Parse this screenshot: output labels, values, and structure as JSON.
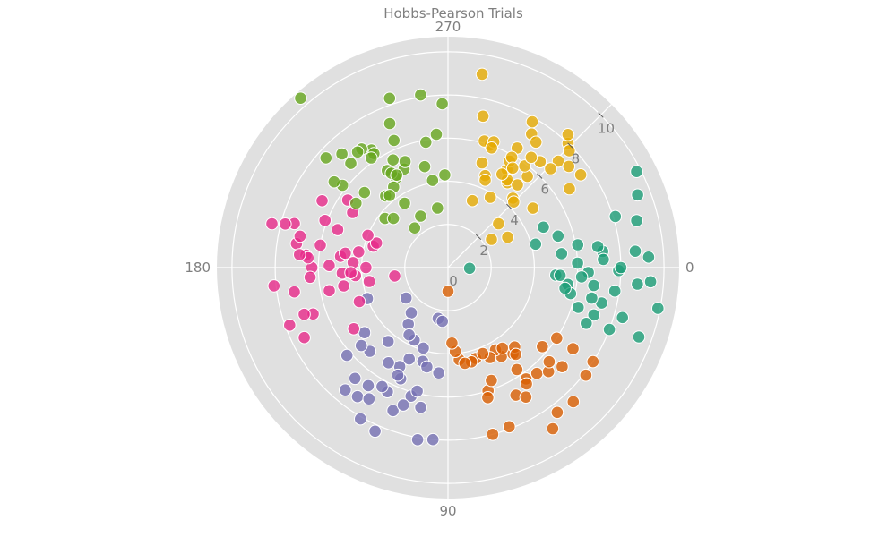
{
  "chart_data": {
    "type": "scatter",
    "subtype": "polar",
    "title": "Hobbs-Pearson Trials",
    "angular_axis": {
      "unit": "degrees",
      "direction": "clockwise",
      "rotation": 0,
      "range": [
        0,
        360
      ],
      "tick_values": [
        0,
        90,
        180,
        270
      ],
      "tick_labels": [
        "0",
        "90",
        "180",
        "270"
      ]
    },
    "radial_axis": {
      "range": [
        0,
        10.7
      ],
      "tick_values": [
        0,
        2,
        4,
        6,
        8,
        10
      ],
      "tick_labels": [
        "0",
        "2",
        "4",
        "6",
        "8",
        "10"
      ],
      "label_angle": 315
    },
    "background_color": "#e0e0e0",
    "grid_color": "#ffffff",
    "grid": true,
    "legend": "none",
    "series": [
      {
        "color": "#1b9e77",
        "points": [
          [
            5.0,
            4
          ],
          [
            9.3,
            357
          ],
          [
            8.7,
            355
          ],
          [
            7.2,
            354
          ],
          [
            7.8,
            8
          ],
          [
            9.4,
            339
          ],
          [
            9.9,
            11
          ],
          [
            8.4,
            16
          ],
          [
            4.2,
            345
          ],
          [
            9.0,
            346
          ],
          [
            8.1,
            343
          ],
          [
            7.0,
            352
          ],
          [
            6.1,
            350
          ],
          [
            5.3,
            353
          ],
          [
            6.8,
            7
          ],
          [
            7.9,
            1
          ],
          [
            6.5,
            2
          ],
          [
            5.6,
            8
          ],
          [
            8.0,
            21
          ],
          [
            7.3,
            13
          ],
          [
            9.4,
            4
          ],
          [
            8.0,
            0
          ],
          [
            6.2,
            4
          ],
          [
            7.1,
            18
          ],
          [
            5.3,
            344
          ],
          [
            9.8,
            333
          ],
          [
            5.8,
            12
          ],
          [
            6.3,
            17
          ],
          [
            6.9,
            22
          ],
          [
            9.4,
            20
          ],
          [
            8.8,
            5
          ],
          [
            4.8,
            337
          ],
          [
            6.0,
            358
          ],
          [
            5.5,
            10
          ],
          [
            5.2,
            4
          ],
          [
            1.0,
            2
          ],
          [
            6.8,
            12
          ],
          [
            7.2,
            357
          ]
        ]
      },
      {
        "color": "#d95f02",
        "points": [
          [
            5.7,
            40
          ],
          [
            4.8,
            59
          ],
          [
            6.9,
            33
          ],
          [
            4.4,
            73
          ],
          [
            4.3,
            83
          ],
          [
            6.0,
            72
          ],
          [
            6.4,
            50
          ],
          [
            7.0,
            41
          ],
          [
            8.5,
            47
          ],
          [
            8.9,
            57
          ],
          [
            4.5,
            76
          ],
          [
            5.7,
            56
          ],
          [
            4.4,
            60
          ],
          [
            8.0,
            33
          ],
          [
            3.9,
            85
          ],
          [
            4.6,
            65
          ],
          [
            7.9,
            69
          ],
          [
            6.7,
            46
          ],
          [
            6.3,
            55
          ],
          [
            1.1,
            90
          ],
          [
            5.0,
            53
          ],
          [
            3.5,
            87
          ],
          [
            4.5,
            56
          ],
          [
            8.1,
            38
          ],
          [
            6.7,
            62
          ],
          [
            6.0,
            33
          ],
          [
            4.8,
            50
          ],
          [
            5.6,
            69
          ],
          [
            8.4,
            53
          ],
          [
            6.4,
            43
          ],
          [
            6.3,
            73
          ],
          [
            5.1,
            52
          ],
          [
            4.5,
            80
          ],
          [
            7.0,
            59
          ],
          [
            4.3,
            68
          ],
          [
            6.5,
            56
          ],
          [
            8.0,
            75
          ]
        ]
      },
      {
        "color": "#7570b3",
        "points": [
          [
            2.7,
            129
          ],
          [
            2.4,
            101
          ],
          [
            3.2,
            125
          ],
          [
            2.4,
            144
          ],
          [
            4.0,
            159
          ],
          [
            6.4,
            116
          ],
          [
            5.6,
            113
          ],
          [
            6.3,
            119
          ],
          [
            8.1,
            100
          ],
          [
            4.5,
            105
          ],
          [
            6.7,
            130
          ],
          [
            6.2,
            139
          ],
          [
            6.6,
            124
          ],
          [
            5.3,
            133
          ],
          [
            8.0,
            95
          ],
          [
            4.9,
            142
          ],
          [
            7.3,
            125
          ],
          [
            4.4,
            129
          ],
          [
            5.1,
            116
          ],
          [
            6.2,
            106
          ],
          [
            7.1,
            111
          ],
          [
            8.3,
            114
          ],
          [
            4.6,
            113
          ],
          [
            3.7,
            115
          ],
          [
            5.9,
            104
          ],
          [
            7.4,
            130
          ],
          [
            8.1,
            120
          ],
          [
            5.2,
            122
          ],
          [
            5.4,
            138
          ],
          [
            3.6,
            120
          ],
          [
            2.5,
            96
          ],
          [
            4.9,
            95
          ],
          [
            4.7,
            102
          ],
          [
            3.9,
            107
          ],
          [
            6.6,
            101
          ],
          [
            6.7,
            108
          ],
          [
            5.5,
            115
          ],
          [
            7.1,
            121
          ]
        ]
      },
      {
        "color": "#e7298a",
        "points": [
          [
            6.6,
            208
          ],
          [
            5.6,
            214
          ],
          [
            7.1,
            189
          ],
          [
            8.1,
            174
          ],
          [
            7.4,
            196
          ],
          [
            6.0,
            190
          ],
          [
            3.6,
            196
          ],
          [
            6.1,
            201
          ],
          [
            7.0,
            192
          ],
          [
            4.4,
            183
          ],
          [
            4.2,
            190
          ],
          [
            7.8,
            195
          ],
          [
            5.4,
            199
          ],
          [
            3.8,
            180
          ],
          [
            7.8,
            160
          ],
          [
            4.9,
            177
          ],
          [
            4.9,
            170
          ],
          [
            5.5,
            181
          ],
          [
            6.3,
            180
          ],
          [
            5.1,
            210
          ],
          [
            2.5,
            171
          ],
          [
            3.7,
            170
          ],
          [
            6.6,
            161
          ],
          [
            6.6,
            185
          ],
          [
            4.3,
            175
          ],
          [
            8.4,
            194
          ],
          [
            3.5,
            199
          ],
          [
            5.0,
            186
          ],
          [
            4.0,
            202
          ],
          [
            4.4,
            159
          ],
          [
            7.2,
            171
          ],
          [
            6.4,
            176
          ],
          [
            5.6,
            169
          ],
          [
            6.5,
            184
          ],
          [
            7.4,
            154
          ],
          [
            5.2,
            147
          ],
          [
            6.9,
            185
          ],
          [
            7.0,
            162
          ],
          [
            4.5,
            177
          ],
          [
            4.8,
            188
          ]
        ]
      },
      {
        "color": "#66a61e",
        "points": [
          [
            3.6,
            236
          ],
          [
            4.1,
            260
          ],
          [
            6.6,
            227
          ],
          [
            7.2,
            227
          ],
          [
            6.2,
            218
          ],
          [
            5.2,
            215
          ],
          [
            7.6,
            222
          ],
          [
            6.5,
            237
          ],
          [
            5.0,
            246
          ],
          [
            10.4,
            229
          ],
          [
            4.8,
            257
          ],
          [
            5.6,
            243
          ],
          [
            6.8,
            234
          ],
          [
            5.3,
            238
          ],
          [
            4.4,
            229
          ],
          [
            2.7,
            242
          ],
          [
            4.8,
            240
          ],
          [
            8.3,
            251
          ],
          [
            6.8,
            232
          ],
          [
            3.7,
            218
          ],
          [
            6.3,
            237
          ],
          [
            5.3,
            248
          ],
          [
            5.1,
            239
          ],
          [
            6.4,
            247
          ],
          [
            7.6,
            268
          ],
          [
            4.3,
            268
          ],
          [
            6.2,
            265
          ],
          [
            8.1,
            261
          ],
          [
            7.2,
            248
          ],
          [
            5.2,
            222
          ],
          [
            3.4,
            222
          ],
          [
            6.6,
            217
          ],
          [
            4.5,
            236
          ],
          [
            2.8,
            260
          ],
          [
            5.9,
            260
          ],
          [
            6.2,
            235
          ],
          [
            4.9,
            241
          ],
          [
            4.3,
            231
          ],
          [
            2.4,
            230
          ]
        ]
      },
      {
        "color": "#e6ab02",
        "points": [
          [
            7.2,
            283
          ],
          [
            9.1,
            280
          ],
          [
            6.0,
            289
          ],
          [
            5.1,
            288
          ],
          [
            7.3,
            302
          ],
          [
            5.3,
            301
          ],
          [
            3.1,
            319
          ],
          [
            4.8,
            305
          ],
          [
            5.7,
            300
          ],
          [
            6.1,
            286
          ],
          [
            4.6,
            292
          ],
          [
            4.4,
            313
          ],
          [
            3.3,
            290
          ],
          [
            2.4,
            327
          ],
          [
            3.8,
            301
          ],
          [
            6.4,
            300
          ],
          [
            4.9,
            304
          ],
          [
            4.4,
            293
          ],
          [
            5.6,
            311
          ],
          [
            8.0,
            314
          ],
          [
            7.8,
            300
          ],
          [
            6.5,
            311
          ],
          [
            5.9,
            300
          ],
          [
            7.5,
            325
          ],
          [
            7.1,
            316
          ],
          [
            6.2,
            290
          ],
          [
            5.9,
            307
          ],
          [
            4.3,
            315
          ],
          [
            6.6,
            316
          ],
          [
            7.8,
            316
          ],
          [
            5.9,
            290
          ],
          [
            7.3,
            320
          ],
          [
            6.7,
            327
          ],
          [
            5.0,
            300
          ],
          [
            4.8,
            325
          ],
          [
            3.1,
            333
          ],
          [
            6.4,
            307
          ],
          [
            5.5,
            303
          ],
          [
            7.1,
            305
          ],
          [
            8.3,
            312
          ],
          [
            5.0,
            310
          ]
        ]
      }
    ]
  }
}
